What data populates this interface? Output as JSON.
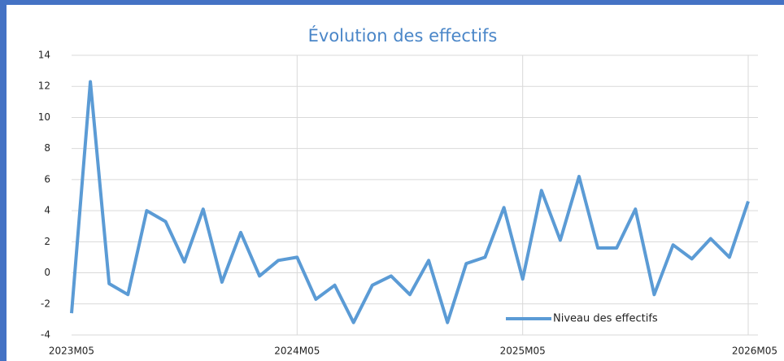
{
  "chart_data": {
    "type": "line",
    "title": "Évolution des effectifs",
    "categories": [
      "2023M05",
      null,
      null,
      null,
      null,
      null,
      null,
      null,
      null,
      null,
      null,
      null,
      "2024M05",
      null,
      null,
      null,
      null,
      null,
      null,
      null,
      null,
      null,
      null,
      null,
      "2025M05",
      null,
      null,
      null,
      null,
      null,
      null,
      null,
      null,
      null,
      null,
      null,
      "2026M05"
    ],
    "series": [
      {
        "name": "Niveau des effectifs",
        "color": "#5b9bd5",
        "values": [
          -2.6,
          12.3,
          -0.7,
          -1.4,
          4.0,
          3.3,
          0.7,
          4.1,
          -0.6,
          2.6,
          -0.2,
          0.8,
          1.0,
          -1.7,
          -0.8,
          -3.2,
          -0.8,
          -0.2,
          -1.4,
          0.8,
          -3.2,
          0.6,
          1.0,
          4.2,
          -0.4,
          5.3,
          2.1,
          6.2,
          1.6,
          1.6,
          4.1,
          -1.4,
          1.8,
          0.9,
          2.2,
          1.0,
          4.6
        ]
      }
    ],
    "ylim": [
      -4,
      14
    ],
    "yticks": [
      -4,
      -2,
      0,
      2,
      4,
      6,
      8,
      10,
      12,
      14
    ],
    "grid": true,
    "legend": "bottom-right"
  }
}
